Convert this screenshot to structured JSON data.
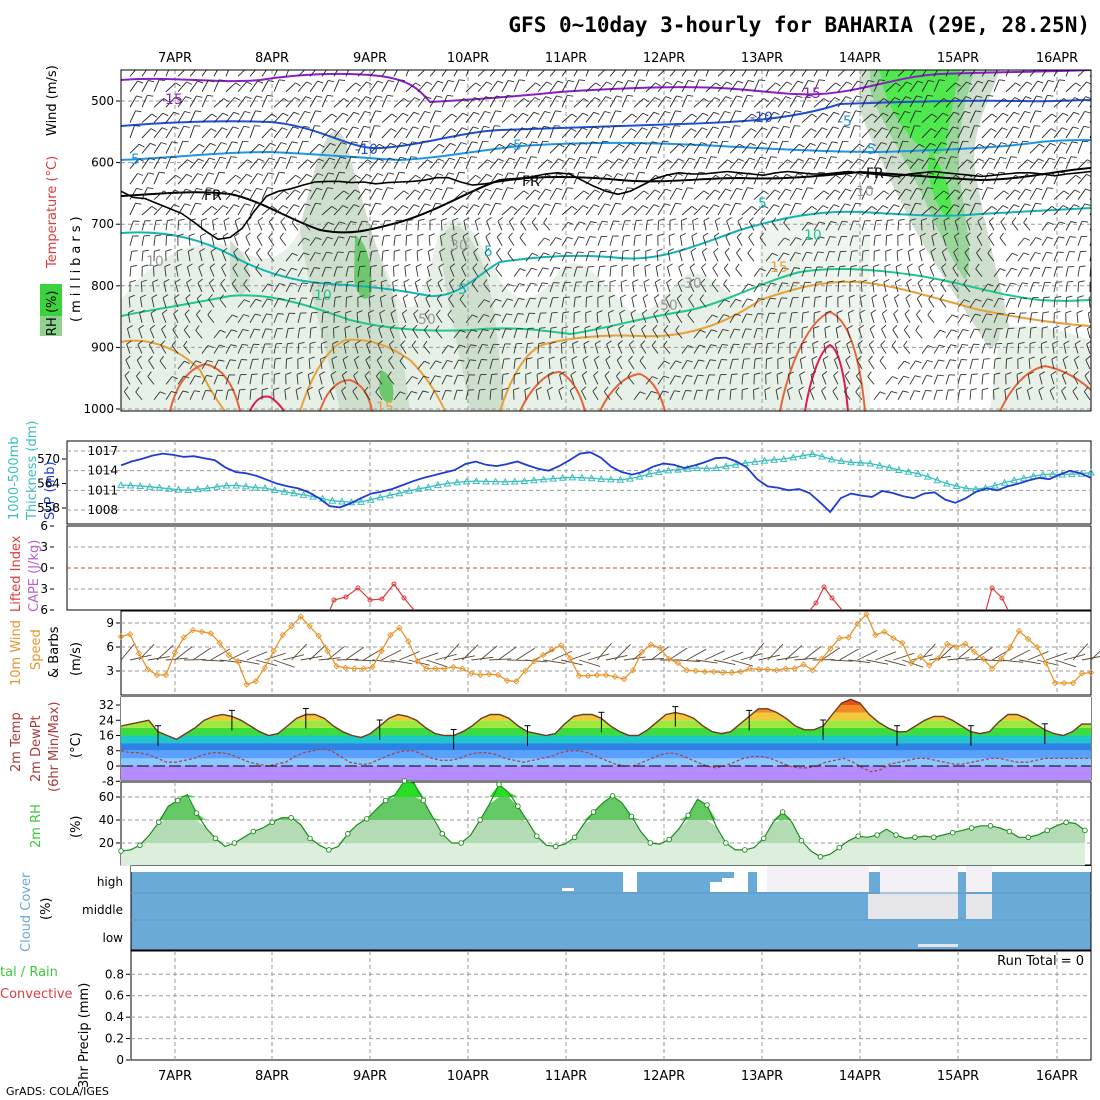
{
  "title": "GFS 0~10day 3-hourly for BAHARIA (29E, 28.25N)",
  "credit": "GrADS: COLA/IGES",
  "dates": [
    "7APR",
    "8APR",
    "9APR",
    "10APR",
    "11APR",
    "12APR",
    "13APR",
    "14APR",
    "15APR",
    "16APR"
  ],
  "panel_labels": {
    "upper_rh": "RH (%)",
    "upper_temp": "Temperature (°C)",
    "upper_wind": "Wind (m/s)",
    "upper_units": "(millibars)",
    "thick_a": "1000-500mb",
    "thick_b": "Thickness (dm)",
    "slp": "SLP (mb)",
    "li": "Lifted Index",
    "cape": "CAPE (J/kg)",
    "wind10_a": "10m Wind",
    "wind10_b": "Speed",
    "wind10_c": "& Barbs",
    "wind10_units": "(m/s)",
    "temp_a": "2m Temp",
    "temp_b": "2m DewPt",
    "temp_c": "(6hr Min/Max)",
    "temp_units": "(°C)",
    "rh_a": "2m RH",
    "rh_units": "(%)",
    "cloud_a": "Cloud Cover",
    "cloud_units": "(%)",
    "precip_a": "tal / Rain",
    "precip_b": "Convective",
    "precip_c": "3hr Precip (mm)",
    "run_total": "Run Total = 0"
  },
  "colors": {
    "rh_green": "#3cd23c",
    "slp": "#1e3cd2",
    "thickness": "#3cbebe",
    "wind_speed": "#e6962d",
    "lifted_index": "#dc3c3c",
    "cape": "#b464d2",
    "cloud": "#6aaad7",
    "rh2m": "#3cc83c"
  },
  "chart_data": [
    {
      "type": "heatmap",
      "name": "upper",
      "xlabel": "",
      "ylabel": "millibars",
      "y_ticks": [
        500,
        600,
        700,
        800,
        900,
        1000
      ],
      "ylim": [
        1000,
        450
      ],
      "contour_labels": [
        "-15",
        "-15",
        "-10",
        "-10",
        "-5",
        "-5",
        "-5",
        "-5",
        "FR",
        "FR",
        "FR",
        "5",
        "5",
        "5",
        "10",
        "10",
        "15",
        "15",
        "10",
        "10",
        "30",
        "30",
        "50",
        "50"
      ],
      "freezing_level_mb": [
        640,
        650,
        652,
        660,
        668,
        676,
        690,
        705,
        718,
        715,
        700,
        672,
        648,
        640,
        636,
        630,
        625,
        624,
        624,
        626,
        625,
        628,
        626,
        625,
        624,
        622,
        618,
        618,
        625,
        630,
        628,
        625,
        622,
        620,
        616,
        612,
        610,
        612,
        622,
        632,
        640,
        645,
        640,
        630,
        620,
        614,
        610,
        612,
        612,
        610,
        608,
        610,
        612,
        614,
        610,
        608,
        610,
        612,
        612,
        610,
        608,
        610,
        612,
        614,
        616,
        612,
        610,
        608,
        610,
        612,
        614,
        616,
        614,
        612,
        610,
        610,
        612,
        615,
        612,
        610,
        608
      ]
    },
    {
      "type": "line",
      "name": "slp_thickness",
      "y_ticks_left": [
        558,
        564,
        570
      ],
      "y_ticks_right": [
        1008,
        1011,
        1014,
        1017
      ],
      "series": [
        {
          "name": "SLP (mb)",
          "values": [
            1014.8,
            1015.4,
            1015.8,
            1016.3,
            1016.6,
            1016.4,
            1016.1,
            1016.2,
            1015.9,
            1015.6,
            1014.5,
            1013.8,
            1013.6,
            1013.2,
            1012.6,
            1012.0,
            1011.6,
            1011.3,
            1010.7,
            1009.8,
            1008.6,
            1008.4,
            1009.0,
            1009.8,
            1010.5,
            1010.8,
            1011.2,
            1011.8,
            1012.4,
            1012.9,
            1013.3,
            1013.7,
            1014.1,
            1015.0,
            1015.4,
            1014.9,
            1014.7,
            1015.0,
            1015.4,
            1014.8,
            1014.3,
            1014.0,
            1014.7,
            1015.6,
            1016.6,
            1016.8,
            1016.0,
            1014.6,
            1013.8,
            1013.4,
            1013.8,
            1014.6,
            1015.1,
            1014.9,
            1014.4,
            1014.8,
            1015.3,
            1015.9,
            1016.0,
            1015.4,
            1014.5,
            1012.7,
            1011.6,
            1011.4,
            1011.0,
            1011.2,
            1010.6,
            1009.2,
            1007.7,
            1009.8,
            1010.5,
            1010.2,
            1010.0,
            1010.9,
            1010.6,
            1010.1,
            1009.8,
            1010.5,
            1010.7,
            1009.6,
            1009.1,
            1009.8,
            1010.8,
            1011.3,
            1011.0,
            1011.6,
            1012.0,
            1012.5,
            1012.9,
            1012.7,
            1013.4,
            1014.0,
            1013.6,
            1012.9
          ]
        },
        {
          "name": "1000-500mb Thickness (dm)",
          "values": [
            563.6,
            563.5,
            563.4,
            563.2,
            563.0,
            562.7,
            562.5,
            562.4,
            562.6,
            562.8,
            563.2,
            563.5,
            563.5,
            563.3,
            563.0,
            562.9,
            562.4,
            562.0,
            561.6,
            561.2,
            560.8,
            560.3,
            559.8,
            559.6,
            559.4,
            559.5,
            560.0,
            560.6,
            561.1,
            561.6,
            562.2,
            562.7,
            563.1,
            563.6,
            564.0,
            564.3,
            564.5,
            564.6,
            564.5,
            564.5,
            564.4,
            564.5,
            564.6,
            564.8,
            565.0,
            565.2,
            565.4,
            565.5,
            565.4,
            565.3,
            565.1,
            565.0,
            564.9,
            565.2,
            565.7,
            566.3,
            566.8,
            567.2,
            567.4,
            567.6,
            567.8,
            567.7,
            567.8,
            568.2,
            568.6,
            569.0,
            569.3,
            569.6,
            569.8,
            570.0,
            570.4,
            570.8,
            571.2,
            570.6,
            569.9,
            569.5,
            569.2,
            569.1,
            568.9,
            568.4,
            567.9,
            567.3,
            566.9,
            566.4,
            565.7,
            564.8,
            564.0,
            563.4,
            562.8,
            562.6,
            562.9,
            563.5,
            564.2,
            564.8,
            565.3,
            565.8,
            566.2,
            566.3,
            566.2,
            566.3,
            566.4,
            566.7
          ]
        }
      ]
    },
    {
      "type": "line",
      "name": "lifted_index_cape",
      "y_ticks": [
        6,
        3,
        0,
        3,
        6
      ],
      "series": [
        {
          "name": "Lifted Index",
          "values": [
            6,
            6,
            6,
            6,
            6,
            6,
            6,
            6,
            6,
            6,
            6,
            6,
            6,
            6,
            6,
            6,
            6,
            6,
            6,
            6,
            6,
            6,
            6,
            6,
            6,
            6,
            6,
            6,
            6,
            6,
            6,
            6,
            6,
            6,
            6,
            6,
            6,
            6,
            6,
            6,
            6,
            6,
            6,
            6,
            6,
            6,
            6,
            6,
            6,
            6,
            6,
            6,
            6,
            6,
            6,
            6,
            6,
            6,
            6,
            6,
            6,
            6,
            6,
            6,
            6,
            6,
            6,
            6,
            6,
            6,
            6,
            6,
            6,
            6,
            6,
            6,
            6,
            6,
            6,
            6,
            6,
            6,
            6,
            6,
            6,
            6,
            6,
            6,
            6,
            6,
            6,
            6,
            6,
            6,
            6,
            6,
            6,
            6,
            6,
            6,
            6,
            6,
            6,
            6,
            6,
            6,
            6,
            6,
            6,
            6,
            6,
            6,
            6,
            6,
            6,
            6,
            6,
            6,
            6,
            6,
            6,
            6,
            6,
            6,
            6,
            6,
            6,
            6,
            6,
            6,
            6,
            6,
            6,
            6,
            6,
            6
          ]
        }
      ]
    },
    {
      "type": "line",
      "name": "wind10m",
      "y_ticks": [
        3,
        6,
        9
      ],
      "ylim": [
        0,
        10.5
      ],
      "series": [
        {
          "name": "10m Wind Speed",
          "values": [
            7.3,
            7.6,
            5.2,
            3.2,
            2.5,
            2.5,
            5.3,
            7.2,
            8.1,
            7.9,
            7.7,
            6.5,
            5.0,
            4.2,
            1.3,
            1.7,
            3.4,
            5.5,
            7.5,
            8.6,
            9.8,
            8.6,
            7.4,
            5.5,
            3.6,
            3.4,
            3.3,
            3.3,
            3.5,
            5.5,
            7.5,
            8.4,
            6.7,
            4.2,
            3.3,
            3.3,
            3.3,
            3.5,
            3.3,
            2.7,
            2.5,
            2.6,
            2.5,
            1.8,
            1.7,
            3.0,
            4.2,
            5.0,
            5.7,
            6.2,
            4.6,
            2.4,
            2.4,
            2.5,
            2.5,
            2.3,
            2.0,
            3.1,
            5.4,
            6.3,
            5.9,
            4.5,
            4.0,
            3.1,
            3.0,
            2.9,
            2.9,
            2.8,
            2.8,
            2.9,
            3.3,
            3.2,
            3.2,
            3.1,
            3.3,
            3.3,
            3.8,
            3.1,
            4.5,
            5.8,
            7.1,
            7.2,
            8.9,
            10.1,
            7.5,
            7.9,
            7.1,
            6.5,
            4.0,
            4.8,
            3.7,
            4.6,
            6.4,
            6.0,
            6.4,
            5.4,
            4.5,
            3.3,
            4.5,
            6.0,
            8.0,
            7.0,
            6.0,
            4.0,
            1.5,
            1.5,
            1.5,
            2.7,
            2.8
          ]
        }
      ]
    },
    {
      "type": "area",
      "name": "temp2m",
      "y_ticks": [
        -8,
        0,
        8,
        16,
        24,
        32
      ],
      "series": [
        {
          "name": "2m Temp",
          "values": [
            21,
            22,
            23,
            24,
            18,
            16,
            14,
            17,
            20,
            24,
            26,
            27,
            26,
            24,
            21,
            18,
            16,
            17,
            21,
            25,
            27,
            27,
            25,
            21,
            18,
            16,
            15,
            17,
            21,
            25,
            27,
            26,
            24,
            20,
            17,
            16,
            16,
            18,
            21,
            25,
            27,
            27,
            25,
            21,
            18,
            17,
            16,
            17,
            22,
            26,
            27,
            27,
            25,
            21,
            18,
            16,
            16,
            19,
            23,
            27,
            28,
            27,
            25,
            21,
            18,
            17,
            18,
            22,
            26,
            30,
            30,
            28,
            25,
            21,
            19,
            19,
            21,
            27,
            33,
            35,
            33,
            27,
            23,
            20,
            18,
            18,
            21,
            24,
            26,
            26,
            24,
            21,
            18,
            17,
            18,
            23,
            27,
            27,
            25,
            22,
            19,
            17,
            16,
            18,
            22,
            22
          ]
        },
        {
          "name": "2m DewPt",
          "values": [
            8,
            7,
            7,
            6,
            4,
            2,
            2,
            3,
            4,
            6,
            7,
            7,
            6,
            4,
            2,
            1,
            0,
            1,
            2,
            5,
            7,
            8,
            9,
            8,
            5,
            2,
            1,
            1,
            3,
            5,
            7,
            8,
            8,
            6,
            4,
            3,
            3,
            4,
            6,
            7,
            7,
            6,
            4,
            3,
            2,
            3,
            4,
            5,
            7,
            8,
            8,
            7,
            5,
            3,
            1,
            0,
            0,
            2,
            4,
            6,
            7,
            6,
            4,
            2,
            0,
            -1,
            0,
            2,
            4,
            5,
            5,
            4,
            2,
            0,
            -1,
            -1,
            0,
            2,
            3,
            4,
            2,
            -1,
            -3,
            -2,
            1,
            2,
            3,
            4,
            4,
            3,
            2,
            1,
            1,
            2,
            3,
            4,
            4,
            3,
            2,
            2,
            3,
            4,
            4,
            4,
            4,
            4,
            4
          ]
        }
      ]
    },
    {
      "type": "area",
      "name": "rh2m",
      "y_ticks": [
        20,
        40,
        60
      ],
      "series": [
        {
          "name": "2m RH",
          "values": [
            13,
            14,
            18,
            27,
            38,
            52,
            57,
            62,
            46,
            33,
            24,
            17,
            20,
            25,
            30,
            33,
            38,
            42,
            42,
            36,
            24,
            18,
            14,
            17,
            28,
            36,
            41,
            49,
            57,
            62,
            74,
            72,
            57,
            42,
            28,
            20,
            20,
            27,
            40,
            54,
            71,
            64,
            52,
            39,
            26,
            18,
            17,
            19,
            25,
            37,
            47,
            55,
            61,
            55,
            43,
            30,
            20,
            19,
            23,
            32,
            44,
            58,
            53,
            34,
            20,
            14,
            14,
            16,
            24,
            38,
            47,
            38,
            22,
            13,
            8,
            10,
            16,
            22,
            26,
            25,
            27,
            32,
            27,
            24,
            25,
            26,
            25,
            27,
            29,
            31,
            33,
            35,
            35,
            33,
            30,
            25,
            25,
            27,
            31,
            35,
            38,
            37,
            31
          ]
        }
      ]
    },
    {
      "type": "heatmap",
      "name": "cloud_cover",
      "y_ticks": [
        "high",
        "middle",
        "low"
      ]
    },
    {
      "type": "bar",
      "name": "precip3hr",
      "y_ticks": [
        0,
        0.2,
        0.4,
        0.6,
        0.8
      ],
      "ylim": [
        0,
        1
      ],
      "series": [
        {
          "name": "3hr Precip (mm)",
          "values": []
        }
      ]
    }
  ]
}
